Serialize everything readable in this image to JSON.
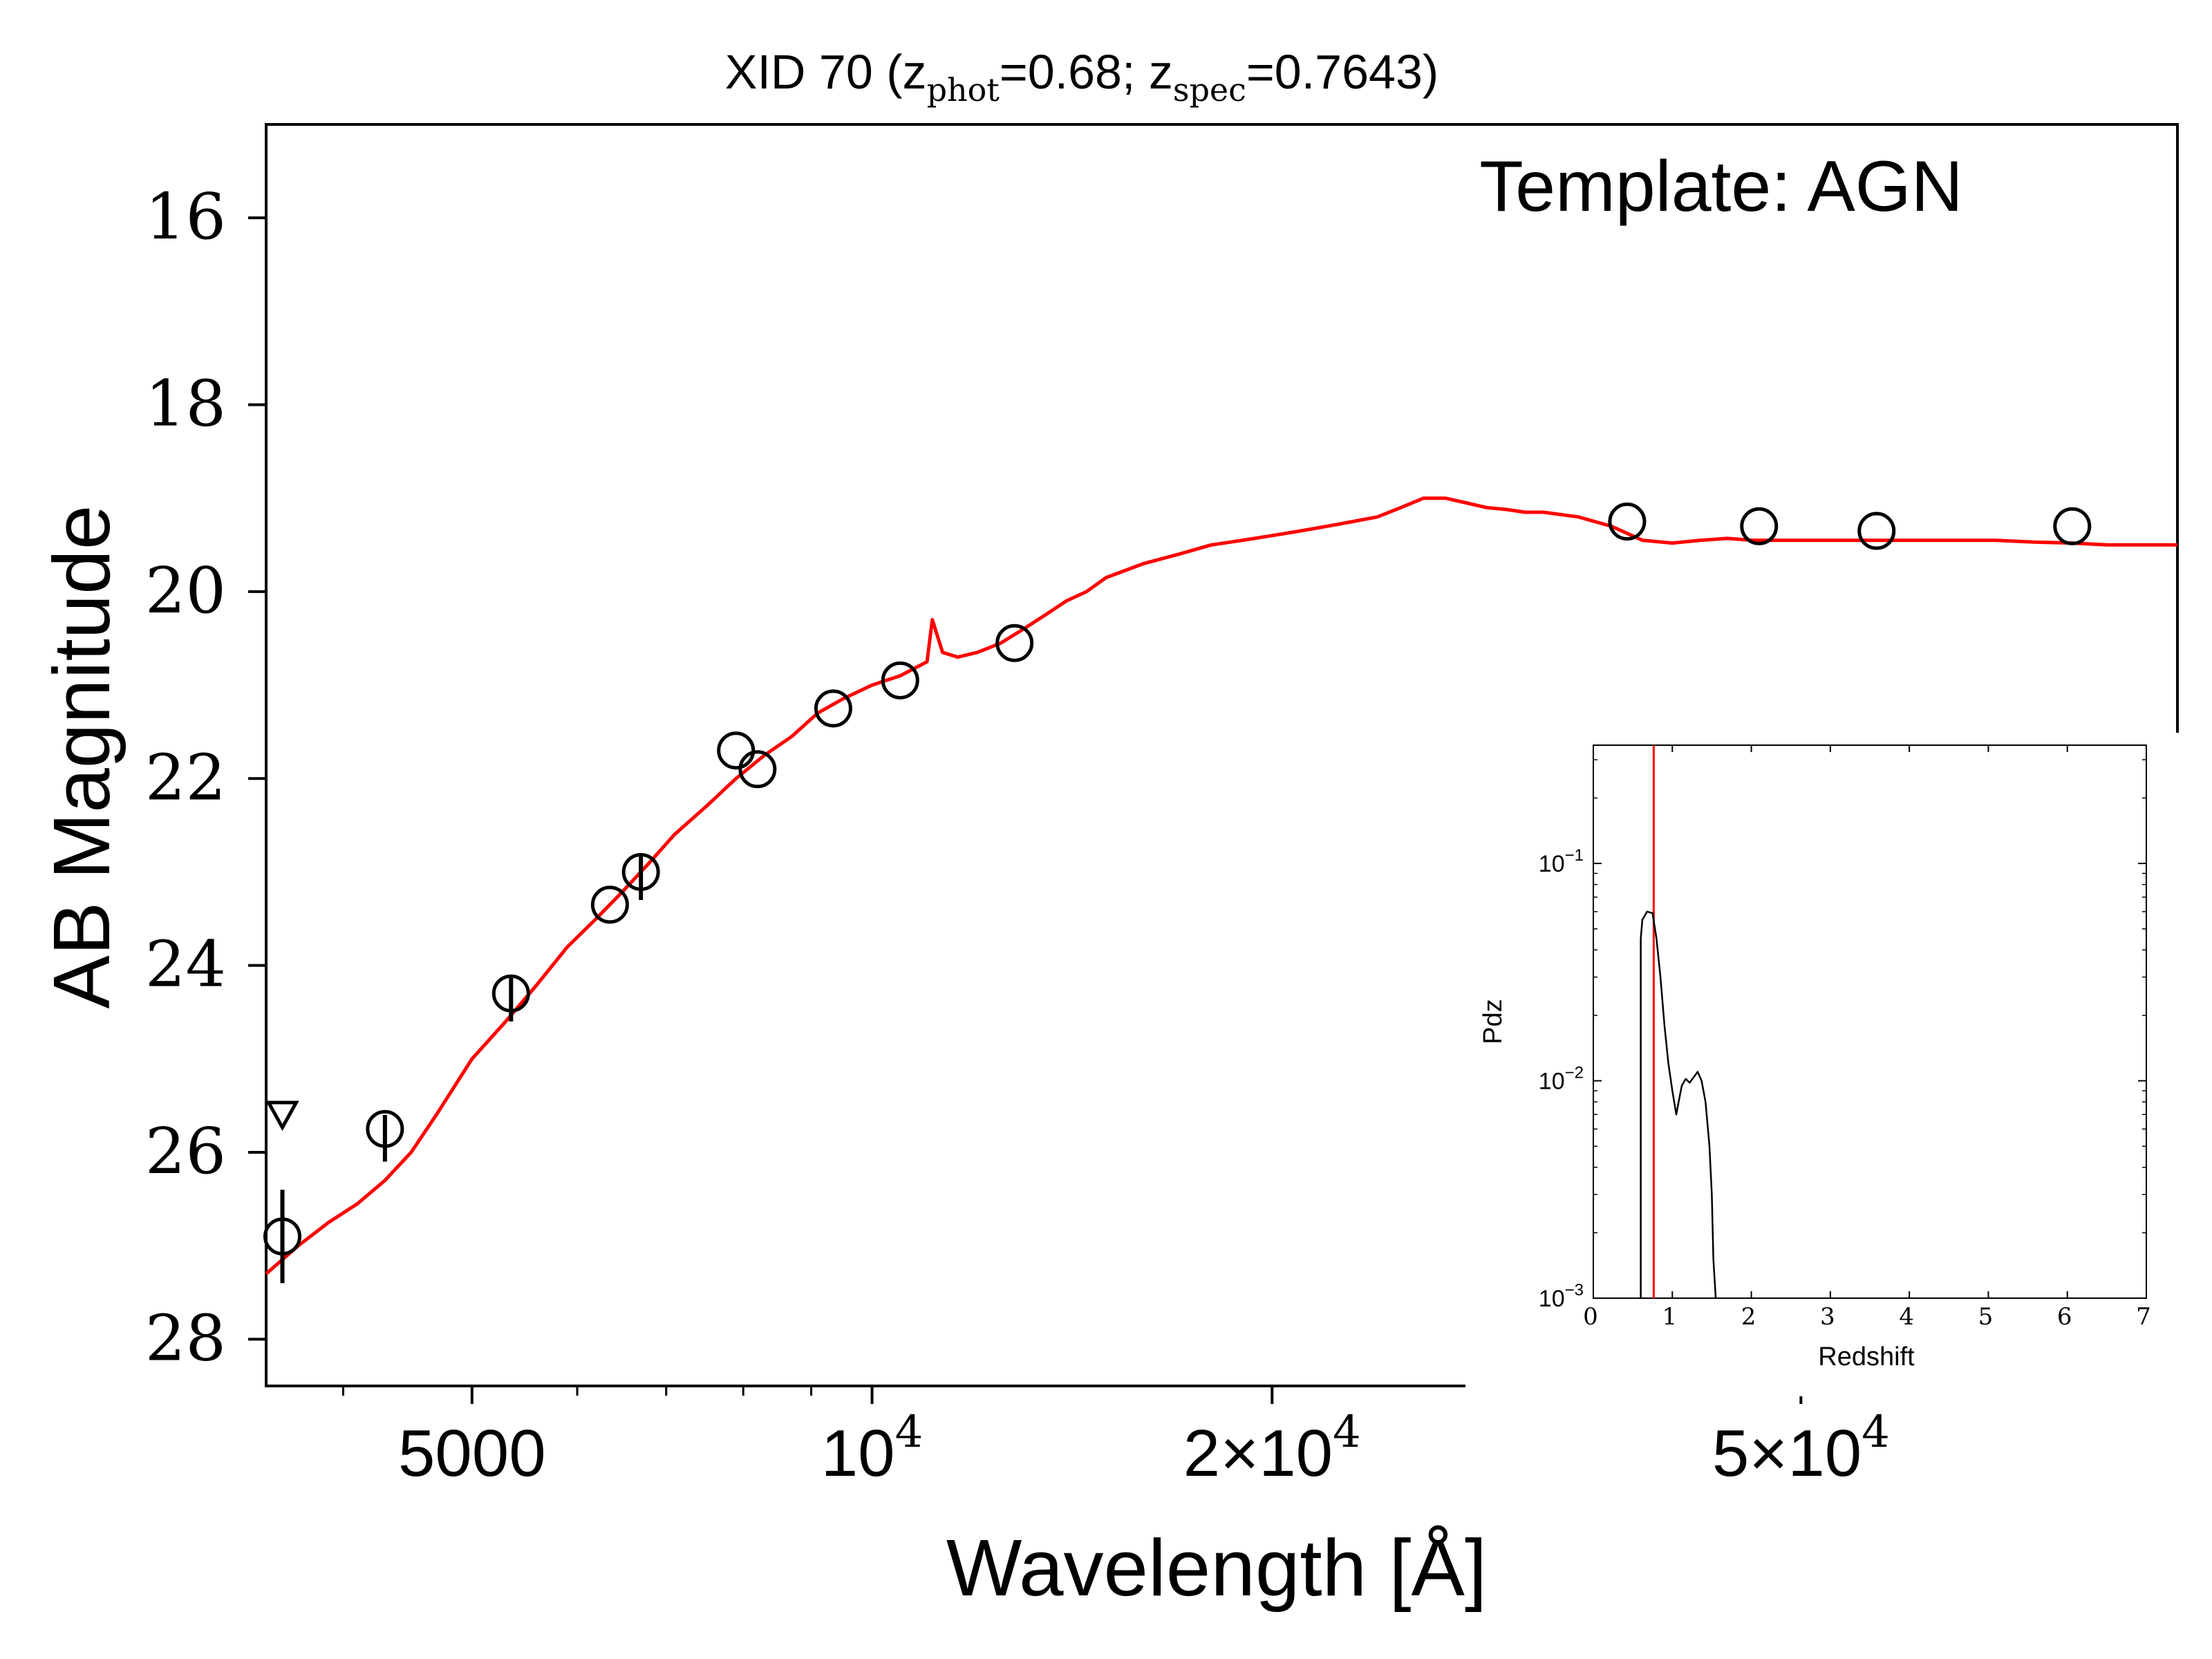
{
  "chart_data": [
    {
      "type": "line",
      "title": "XID 70 (z",
      "title_parts": {
        "prefix": "XID 70 (z",
        "phot_sub": "phot",
        "phot_val": "=0.68; z",
        "spec_sub": "spec",
        "spec_val": "=0.7643)"
      },
      "annotation": "Template: AGN",
      "xlabel": "Wavelength [Å]",
      "ylabel": "AB Magnitude",
      "x_scale": "log",
      "xlim": [
        3500,
        96000
      ],
      "ylim": [
        28.5,
        15.0
      ],
      "y_inverted": true,
      "x_ticks": [
        {
          "value": 5000,
          "label": "5000",
          "exp": ""
        },
        {
          "value": 10000,
          "label": "10",
          "exp": "4"
        },
        {
          "value": 20000,
          "label": "2×10",
          "exp": "4"
        },
        {
          "value": 50000,
          "label": "5×10",
          "exp": "4"
        }
      ],
      "y_ticks": [
        "16",
        "18",
        "20",
        "22",
        "24",
        "26",
        "28"
      ],
      "template_color": "#ff0000",
      "series": [
        {
          "kind": "template",
          "x": [
            3500,
            3700,
            3900,
            4100,
            4300,
            4500,
            4700,
            5000,
            5300,
            5600,
            5900,
            6200,
            6500,
            6800,
            7100,
            7500,
            7900,
            8300,
            8700,
            9100,
            9500,
            10000,
            10500,
            11000,
            11100,
            11300,
            11600,
            12000,
            12500,
            13000,
            13500,
            14000,
            14500,
            15000,
            16000,
            17000,
            18000,
            19000,
            20000,
            21000,
            22000,
            23000,
            24000,
            25000,
            26000,
            27000,
            28000,
            29000,
            30000,
            31000,
            32000,
            34000,
            36000,
            38000,
            40000,
            42000,
            44000,
            46000,
            50000,
            55000,
            60000,
            65000,
            70000,
            75000,
            80000,
            85000,
            90000,
            96000
          ],
          "y": [
            27.3,
            27.0,
            26.75,
            26.55,
            26.3,
            26.0,
            25.6,
            25.0,
            24.6,
            24.2,
            23.8,
            23.5,
            23.2,
            22.9,
            22.6,
            22.3,
            22.0,
            21.75,
            21.55,
            21.3,
            21.15,
            21.0,
            20.9,
            20.75,
            20.3,
            20.65,
            20.7,
            20.65,
            20.55,
            20.4,
            20.25,
            20.1,
            20.0,
            19.85,
            19.7,
            19.6,
            19.5,
            19.45,
            19.4,
            19.35,
            19.3,
            19.25,
            19.2,
            19.1,
            19.0,
            19.0,
            19.05,
            19.1,
            19.12,
            19.15,
            19.15,
            19.2,
            19.3,
            19.45,
            19.48,
            19.45,
            19.43,
            19.45,
            19.45,
            19.45,
            19.45,
            19.45,
            19.45,
            19.47,
            19.48,
            19.5,
            19.5,
            19.5
          ]
        },
        {
          "kind": "photometry",
          "x": [
            3600,
            4300,
            5350,
            6350,
            6700,
            7900,
            8200,
            9350,
            10500,
            12800,
            37000,
            46500,
            57000,
            80000
          ],
          "y": [
            26.9,
            25.75,
            24.3,
            23.35,
            23.0,
            21.7,
            21.9,
            21.25,
            20.95,
            20.55,
            19.25,
            19.3,
            19.35,
            19.3
          ]
        },
        {
          "kind": "upper_limit",
          "x": [
            3600
          ],
          "y": [
            25.6
          ]
        }
      ],
      "error_bars": [
        {
          "x": 3600,
          "y_low": 26.4,
          "y_high": 27.4
        },
        {
          "x": 4300,
          "y_low": 25.6,
          "y_high": 26.1
        },
        {
          "x": 5350,
          "y_low": 24.1,
          "y_high": 24.6
        },
        {
          "x": 6700,
          "y_low": 22.8,
          "y_high": 23.3
        }
      ]
    },
    {
      "type": "line",
      "title": "",
      "xlabel": "Redshift",
      "ylabel": "Pdz",
      "y_scale": "log",
      "xlim": [
        0,
        7
      ],
      "ylim": [
        0.001,
        0.35
      ],
      "x_ticks": [
        "0",
        "1",
        "2",
        "3",
        "4",
        "5",
        "6",
        "7"
      ],
      "y_ticks": [
        {
          "value": 0.1,
          "base": "10",
          "exp": "−1"
        },
        {
          "value": 0.01,
          "base": "10",
          "exp": "−2"
        },
        {
          "value": 0.001,
          "base": "10",
          "exp": "−3"
        }
      ],
      "marker_line_color": "#ff0000",
      "marker_line_x": 0.7643,
      "series": [
        {
          "x": [
            0.6,
            0.6,
            0.62,
            0.68,
            0.75,
            0.8,
            0.85,
            0.9,
            0.95,
            1.0,
            1.05,
            1.08,
            1.12,
            1.17,
            1.22,
            1.28,
            1.32,
            1.37,
            1.42,
            1.47,
            1.5,
            1.52,
            1.55
          ],
          "y": [
            0.001,
            0.045,
            0.055,
            0.06,
            0.059,
            0.045,
            0.03,
            0.018,
            0.012,
            0.009,
            0.007,
            0.008,
            0.0095,
            0.0102,
            0.0098,
            0.0105,
            0.011,
            0.01,
            0.008,
            0.005,
            0.003,
            0.0015,
            0.001
          ]
        }
      ]
    }
  ]
}
